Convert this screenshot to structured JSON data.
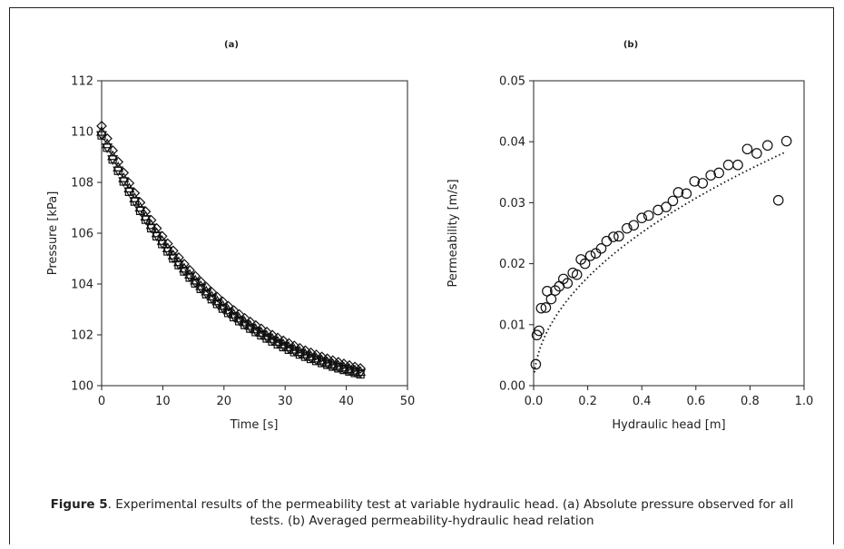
{
  "caption": {
    "label": "Figure 5",
    "text": ". Experimental results of the permeability test at variable hydraulic head. (a) Absolute pressure observed for all tests. (b) Averaged permeability-hydraulic head relation"
  },
  "chart_data": [
    {
      "type": "scatter",
      "title": "(a)",
      "xlabel": "Time [s]",
      "ylabel": "Pressure [kPa]",
      "xlim": [
        0,
        50
      ],
      "ylim": [
        100,
        112
      ],
      "xticks": [
        "0",
        "10",
        "20",
        "30",
        "40",
        "50"
      ],
      "yticks": [
        "100",
        "102",
        "104",
        "106",
        "108",
        "110",
        "112"
      ],
      "grid": false,
      "legend": "none",
      "series": [
        {
          "marker": "diamond",
          "t0": 0,
          "t1": 42.5,
          "step": 0.9,
          "p0": 110.1,
          "pinf": 99.4,
          "k": 0.0525,
          "offset": 0.12
        },
        {
          "marker": "triangle-up",
          "t0": 0,
          "t1": 42.5,
          "step": 0.9,
          "p0": 110.0,
          "pinf": 99.4,
          "k": 0.0525,
          "offset": 0.0
        },
        {
          "marker": "triangle-down",
          "t0": 0,
          "t1": 42.5,
          "step": 0.9,
          "p0": 109.9,
          "pinf": 99.4,
          "k": 0.0525,
          "offset": -0.05
        },
        {
          "marker": "square",
          "t0": 0,
          "t1": 42.5,
          "step": 0.9,
          "p0": 109.95,
          "pinf": 99.4,
          "k": 0.0525,
          "offset": -0.1
        }
      ]
    },
    {
      "type": "scatter",
      "title": "(b)",
      "xlabel": "Hydraulic head [m]",
      "ylabel": "Permeability [m/s]",
      "xlim": [
        0,
        1.0
      ],
      "ylim": [
        0,
        0.05
      ],
      "xticks": [
        "0.0",
        "0.2",
        "0.4",
        "0.6",
        "0.8",
        "1.0"
      ],
      "yticks": [
        "0.00",
        "0.01",
        "0.02",
        "0.03",
        "0.04",
        "0.05"
      ],
      "grid": false,
      "legend": "none",
      "points": [
        [
          0.008,
          0.0035
        ],
        [
          0.012,
          0.0083
        ],
        [
          0.02,
          0.009
        ],
        [
          0.028,
          0.0127
        ],
        [
          0.045,
          0.0128
        ],
        [
          0.05,
          0.0155
        ],
        [
          0.065,
          0.0142
        ],
        [
          0.08,
          0.0156
        ],
        [
          0.095,
          0.0163
        ],
        [
          0.11,
          0.0175
        ],
        [
          0.125,
          0.0168
        ],
        [
          0.145,
          0.0185
        ],
        [
          0.16,
          0.0182
        ],
        [
          0.175,
          0.0207
        ],
        [
          0.19,
          0.02
        ],
        [
          0.21,
          0.0213
        ],
        [
          0.23,
          0.0217
        ],
        [
          0.25,
          0.0225
        ],
        [
          0.27,
          0.0237
        ],
        [
          0.295,
          0.0244
        ],
        [
          0.315,
          0.0245
        ],
        [
          0.345,
          0.0258
        ],
        [
          0.37,
          0.0263
        ],
        [
          0.4,
          0.0275
        ],
        [
          0.425,
          0.0279
        ],
        [
          0.46,
          0.0288
        ],
        [
          0.49,
          0.0293
        ],
        [
          0.515,
          0.0303
        ],
        [
          0.535,
          0.0317
        ],
        [
          0.565,
          0.0315
        ],
        [
          0.595,
          0.0335
        ],
        [
          0.625,
          0.0332
        ],
        [
          0.655,
          0.0345
        ],
        [
          0.685,
          0.0349
        ],
        [
          0.72,
          0.0362
        ],
        [
          0.755,
          0.0362
        ],
        [
          0.79,
          0.0388
        ],
        [
          0.825,
          0.0381
        ],
        [
          0.865,
          0.0394
        ],
        [
          0.905,
          0.0304
        ],
        [
          0.935,
          0.0401
        ]
      ],
      "trendline": {
        "style": "dotted",
        "form": "power",
        "a": 0.0397,
        "b": 0.5,
        "x0": 0.003,
        "x1": 0.93
      }
    }
  ]
}
